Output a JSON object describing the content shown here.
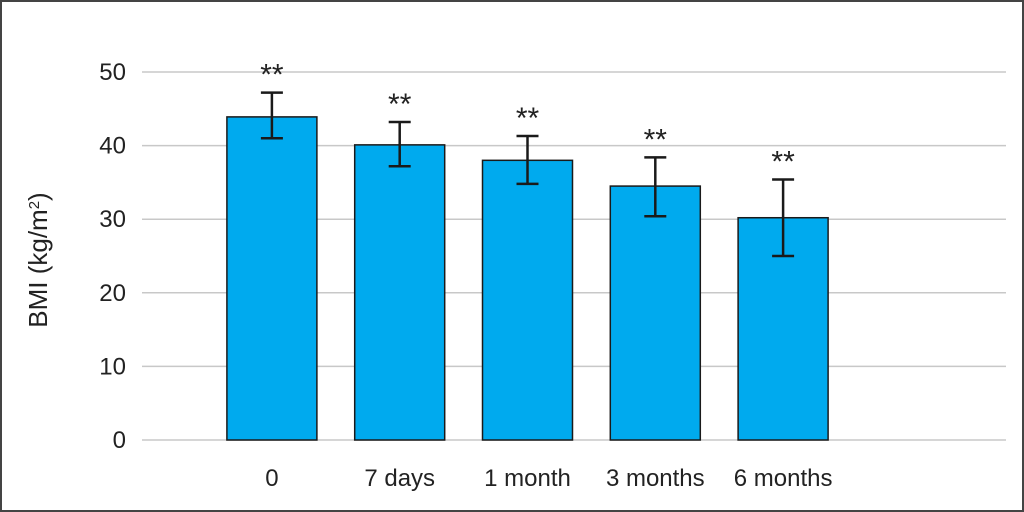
{
  "chart_data": {
    "type": "bar",
    "categories": [
      "0",
      "7 days",
      "1 month",
      "3 months",
      "6 months"
    ],
    "values": [
      43.9,
      40.1,
      38.0,
      34.5,
      30.2
    ],
    "error_bars": [
      {
        "low": 41.0,
        "high": 47.2
      },
      {
        "low": 37.2,
        "high": 43.2
      },
      {
        "low": 34.8,
        "high": 41.3
      },
      {
        "low": 30.4,
        "high": 38.4
      },
      {
        "low": 25.0,
        "high": 35.4
      }
    ],
    "annotations": [
      "**",
      "**",
      "**",
      "**",
      "**"
    ],
    "ylabel_main": "BMI (kg/m",
    "ylabel_sup": "2",
    "ylabel_close": ")",
    "yticks": [
      "0",
      "10",
      "20",
      "30",
      "40",
      "50"
    ],
    "ylim": [
      0,
      50
    ],
    "grid": true,
    "bar_color": "#00aaee"
  }
}
